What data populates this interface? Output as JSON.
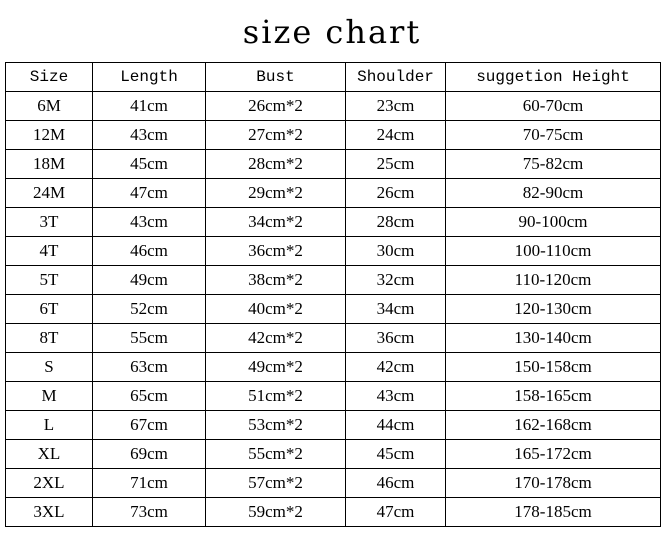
{
  "title": "size chart",
  "table": {
    "headers": [
      "Size",
      "Length",
      "Bust",
      "Shoulder",
      "suggetion Height"
    ],
    "rows": [
      [
        "6M",
        "41cm",
        "26cm*2",
        "23cm",
        "60-70cm"
      ],
      [
        "12M",
        "43cm",
        "27cm*2",
        "24cm",
        "70-75cm"
      ],
      [
        "18M",
        "45cm",
        "28cm*2",
        "25cm",
        "75-82cm"
      ],
      [
        "24M",
        "47cm",
        "29cm*2",
        "26cm",
        "82-90cm"
      ],
      [
        "3T",
        "43cm",
        "34cm*2",
        "28cm",
        "90-100cm"
      ],
      [
        "4T",
        "46cm",
        "36cm*2",
        "30cm",
        "100-110cm"
      ],
      [
        "5T",
        "49cm",
        "38cm*2",
        "32cm",
        "110-120cm"
      ],
      [
        "6T",
        "52cm",
        "40cm*2",
        "34cm",
        "120-130cm"
      ],
      [
        "8T",
        "55cm",
        "42cm*2",
        "36cm",
        "130-140cm"
      ],
      [
        "S",
        "63cm",
        "49cm*2",
        "42cm",
        "150-158cm"
      ],
      [
        "M",
        "65cm",
        "51cm*2",
        "43cm",
        "158-165cm"
      ],
      [
        "L",
        "67cm",
        "53cm*2",
        "44cm",
        "162-168cm"
      ],
      [
        "XL",
        "69cm",
        "55cm*2",
        "45cm",
        "165-172cm"
      ],
      [
        "2XL",
        "71cm",
        "57cm*2",
        "46cm",
        "170-178cm"
      ],
      [
        "3XL",
        "73cm",
        "59cm*2",
        "47cm",
        "178-185cm"
      ]
    ]
  }
}
